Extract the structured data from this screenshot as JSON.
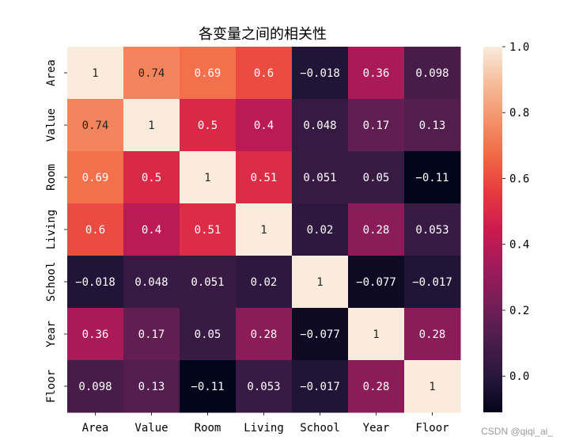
{
  "chart_data": {
    "type": "heatmap",
    "title": "各变量之间的相关性",
    "x_categories": [
      "Area",
      "Value",
      "Room",
      "Living",
      "School",
      "Year",
      "Floor"
    ],
    "y_categories": [
      "Area",
      "Value",
      "Room",
      "Living",
      "School",
      "Year",
      "Floor"
    ],
    "values": [
      [
        1,
        0.74,
        0.69,
        0.6,
        -0.018,
        0.36,
        0.098
      ],
      [
        0.74,
        1,
        0.5,
        0.4,
        0.048,
        0.17,
        0.13
      ],
      [
        0.69,
        0.5,
        1,
        0.51,
        0.051,
        0.05,
        -0.11
      ],
      [
        0.6,
        0.4,
        0.51,
        1,
        0.02,
        0.28,
        0.053
      ],
      [
        -0.018,
        0.048,
        0.051,
        0.02,
        1,
        -0.077,
        -0.017
      ],
      [
        0.36,
        0.17,
        0.05,
        0.28,
        -0.077,
        1,
        0.28
      ],
      [
        0.098,
        0.13,
        -0.11,
        0.053,
        -0.017,
        0.28,
        1
      ]
    ],
    "labels": [
      [
        "1",
        "0.74",
        "0.69",
        "0.6",
        "-0.018",
        "0.36",
        "0.098"
      ],
      [
        "0.74",
        "1",
        "0.5",
        "0.4",
        "0.048",
        "0.17",
        "0.13"
      ],
      [
        "0.69",
        "0.5",
        "1",
        "0.51",
        "0.051",
        "0.05",
        "-0.11"
      ],
      [
        "0.6",
        "0.4",
        "0.51",
        "1",
        "0.02",
        "0.28",
        "0.053"
      ],
      [
        "-0.018",
        "0.048",
        "0.051",
        "0.02",
        "1",
        "-0.077",
        "-0.017"
      ],
      [
        "0.36",
        "0.17",
        "0.05",
        "0.28",
        "-0.077",
        "1",
        "0.28"
      ],
      [
        "0.098",
        "0.13",
        "-0.11",
        "0.053",
        "-0.017",
        "0.28",
        "1"
      ]
    ],
    "vmin": -0.11,
    "vmax": 1.0,
    "colormap": "rocket",
    "colorbar_ticks": [
      "0.0",
      "0.2",
      "0.4",
      "0.6",
      "0.8",
      "1.0"
    ],
    "colorbar_tick_values": [
      0.0,
      0.2,
      0.4,
      0.6,
      0.8,
      1.0
    ]
  },
  "watermark": "CSDN @qiqi_ai_"
}
